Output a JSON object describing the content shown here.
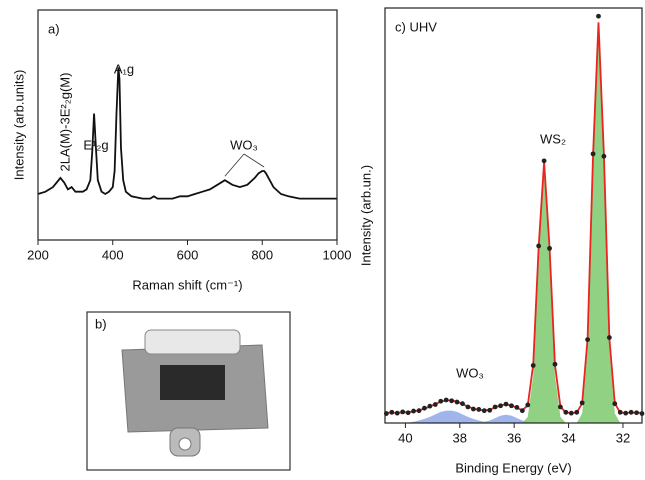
{
  "chart_data": [
    {
      "type": "line",
      "panel": "a)",
      "x_label": "Raman shift (cm⁻¹)",
      "y_label": "Intensity (arb.units)",
      "xlim": [
        200,
        1000
      ],
      "xticks": [
        200,
        400,
        600,
        800,
        1000
      ],
      "ylim": [
        0,
        100
      ],
      "annotations": [
        "2LA(M)-3E²₂g(M)",
        "E¹₂g",
        "A₁g",
        "WO₃"
      ],
      "x": [
        200,
        220,
        240,
        250,
        260,
        270,
        280,
        290,
        300,
        310,
        320,
        330,
        340,
        345,
        350,
        355,
        360,
        370,
        380,
        390,
        400,
        405,
        410,
        415,
        418,
        422,
        428,
        435,
        450,
        480,
        500,
        510,
        520,
        540,
        560,
        580,
        600,
        620,
        640,
        660,
        680,
        700,
        720,
        740,
        760,
        780,
        790,
        800,
        805,
        810,
        820,
        830,
        850,
        870,
        900,
        950,
        1000
      ],
      "series": [
        {
          "style": "line",
          "color": "#111111",
          "values": [
            20,
            21,
            23,
            25,
            27,
            25,
            22,
            23,
            21,
            21,
            21,
            22,
            26,
            38,
            55,
            40,
            26,
            21,
            20,
            21,
            23,
            30,
            55,
            75,
            70,
            40,
            26,
            21,
            19,
            18,
            18,
            19,
            18,
            18,
            18,
            19,
            19,
            20,
            21,
            22,
            24,
            26,
            24,
            23,
            24,
            27,
            29,
            30,
            30,
            29,
            26,
            23,
            20,
            19,
            18,
            18,
            18
          ]
        }
      ]
    },
    {
      "type": "line",
      "panel": "c) UHV",
      "x_label": "Binding Energy (eV)",
      "y_label": "Intensity (arb.un.)",
      "xlim": [
        40.75,
        31.3
      ],
      "xticks": [
        40,
        38,
        36,
        34,
        32
      ],
      "ylim": [
        0,
        101
      ],
      "annotations": [
        "WS₂",
        "WO₃"
      ],
      "x": [
        40.7,
        40.5,
        40.3,
        40.1,
        39.9,
        39.7,
        39.5,
        39.3,
        39.1,
        38.9,
        38.7,
        38.5,
        38.3,
        38.1,
        37.9,
        37.7,
        37.5,
        37.3,
        37.1,
        36.9,
        36.7,
        36.5,
        36.3,
        36.1,
        35.9,
        35.7,
        35.5,
        35.3,
        35.1,
        34.9,
        34.7,
        34.5,
        34.3,
        34.1,
        33.9,
        33.7,
        33.5,
        33.3,
        33.1,
        32.9,
        32.7,
        32.5,
        32.3,
        32.1,
        31.9,
        31.7,
        31.5,
        31.3
      ],
      "series": [
        {
          "style": "area",
          "color": "#8fa8e8",
          "values": [
            0,
            0,
            0,
            0.1,
            0.1,
            0.3,
            0.6,
            1.0,
            1.5,
            2.1,
            2.7,
            3.0,
            3.0,
            2.7,
            2.1,
            1.5,
            1.0,
            0.6,
            0.3,
            0.1,
            0.1,
            0,
            0,
            0,
            0,
            0,
            0,
            0,
            0,
            0,
            0,
            0,
            0,
            0,
            0,
            0,
            0,
            0,
            0,
            0,
            0,
            0,
            0,
            0,
            0,
            0,
            0,
            0
          ]
        },
        {
          "style": "area",
          "color": "#8fa8e8",
          "values": [
            0,
            0,
            0,
            0,
            0,
            0,
            0,
            0,
            0,
            0,
            0,
            0,
            0,
            0,
            0,
            0,
            0,
            0.1,
            0.3,
            0.6,
            1.2,
            1.8,
            2.0,
            1.8,
            1.2,
            0.6,
            0.3,
            0.1,
            0,
            0,
            0,
            0,
            0,
            0,
            0,
            0,
            0,
            0,
            0,
            0,
            0,
            0,
            0,
            0,
            0,
            0,
            0,
            0
          ]
        },
        {
          "style": "area",
          "color": "#7dc96f",
          "values": [
            0,
            0,
            0,
            0,
            0,
            0,
            0,
            0,
            0,
            0,
            0,
            0,
            0,
            0,
            0,
            0,
            0,
            0,
            0,
            0,
            0,
            0,
            0,
            0,
            0,
            0,
            1.5,
            11.6,
            40.3,
            61,
            40.3,
            11.6,
            1.5,
            0,
            0,
            0,
            0,
            0,
            0,
            0,
            0,
            0,
            0,
            0,
            0,
            0,
            0,
            0
          ]
        },
        {
          "style": "area",
          "color": "#7dc96f",
          "values": [
            0,
            0,
            0,
            0,
            0,
            0,
            0,
            0,
            0,
            0,
            0,
            0,
            0,
            0,
            0,
            0,
            0,
            0,
            0,
            0,
            0,
            0,
            0,
            0,
            0,
            0,
            0,
            0,
            0,
            0,
            0,
            0,
            0,
            0,
            0,
            0,
            2.3,
            18.1,
            62.7,
            95,
            62.7,
            18.1,
            2.3,
            0,
            0,
            0,
            0,
            0
          ]
        },
        {
          "style": "line",
          "color": "#e8251f",
          "values": [
            2.5,
            2.5,
            2.5,
            2.6,
            2.6,
            2.8,
            3.1,
            3.5,
            4.0,
            4.6,
            5.2,
            5.5,
            5.5,
            5.2,
            4.6,
            4.0,
            3.5,
            3.2,
            3.1,
            3.2,
            3.8,
            4.3,
            4.5,
            4.3,
            3.7,
            3.1,
            4.3,
            14.2,
            42.8,
            63.5,
            42.8,
            14.1,
            4.0,
            2.5,
            2.5,
            2.5,
            4.8,
            20.6,
            65.2,
            97.5,
            65.2,
            20.6,
            4.8,
            2.5,
            2.5,
            2.5,
            2.5,
            2.5
          ]
        },
        {
          "style": "points",
          "color": "#222222",
          "values": [
            2.3,
            2.6,
            2.4,
            2.7,
            2.5,
            2.9,
            3.0,
            3.6,
            4.1,
            4.5,
            5.3,
            5.6,
            5.4,
            5.1,
            4.7,
            3.9,
            3.4,
            3.3,
            3.0,
            3.1,
            3.9,
            4.2,
            4.6,
            4.2,
            3.8,
            3.0,
            4.4,
            14.0,
            43.1,
            63.8,
            42.5,
            14.3,
            3.9,
            2.6,
            2.4,
            2.6,
            4.9,
            20.3,
            65.5,
            99.0,
            64.9,
            20.8,
            4.7,
            2.6,
            2.4,
            2.6,
            2.5,
            2.3
          ]
        }
      ]
    }
  ],
  "panel_b": {
    "label": "b)"
  }
}
